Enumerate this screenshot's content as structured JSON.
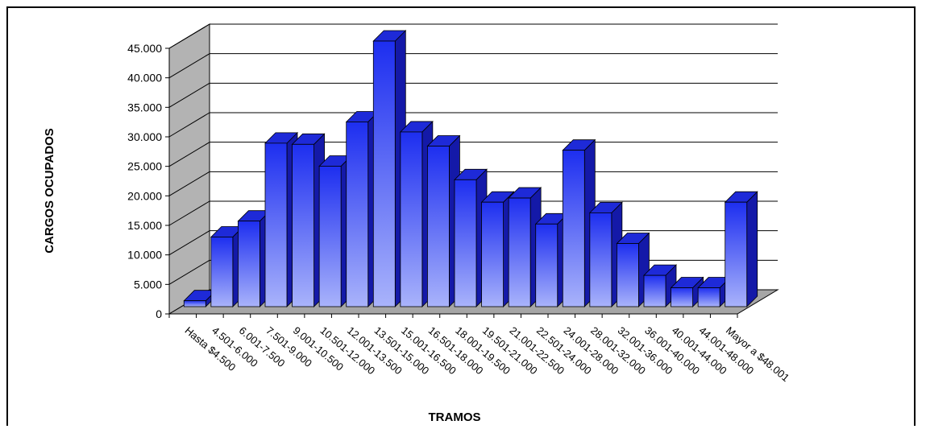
{
  "chart_data": {
    "type": "bar",
    "title": "",
    "xlabel": "TRAMOS",
    "ylabel": "CARGOS OCUPADOS",
    "ylim": [
      0,
      45000
    ],
    "y_ticks": [
      0,
      5000,
      10000,
      15000,
      20000,
      25000,
      30000,
      35000,
      40000,
      45000
    ],
    "y_tick_labels": [
      "0",
      "5.000",
      "10.000",
      "15.000",
      "20.000",
      "25.000",
      "30.000",
      "35.000",
      "40.000",
      "45.000"
    ],
    "grid": true,
    "legend": "none",
    "categories": [
      "Hasta $4.500",
      "4.501-6.000",
      "6.001-7.500",
      "7.501-9.000",
      "9.001-10.500",
      "10.501-12.000",
      "12.001-13.500",
      "13.501-15.000",
      "15.001-16.500",
      "16.501-18.000",
      "18.001-19.500",
      "19.501-21.000",
      "21.001-22.500",
      "22.501-24.000",
      "24.001-28.000",
      "28.001-32.000",
      "32.001-36.000",
      "36.001-40.000",
      "40.001-44.000",
      "44.001-48.000",
      "Mayor a $48.001"
    ],
    "values": [
      1000,
      11800,
      14500,
      27700,
      27500,
      23800,
      31300,
      45000,
      29600,
      27200,
      21500,
      17700,
      18400,
      14000,
      26500,
      15900,
      10700,
      5300,
      3200,
      3200,
      17700
    ],
    "colors": {
      "bar_front_bottom": "#a9b3fb",
      "bar_front_top": "#1d2ef0",
      "bar_top": "#1e2ad8",
      "bar_side": "#1419a8",
      "wall": "#b3b3b3",
      "floor": "#a6a6a6",
      "grid": "#000000"
    }
  }
}
